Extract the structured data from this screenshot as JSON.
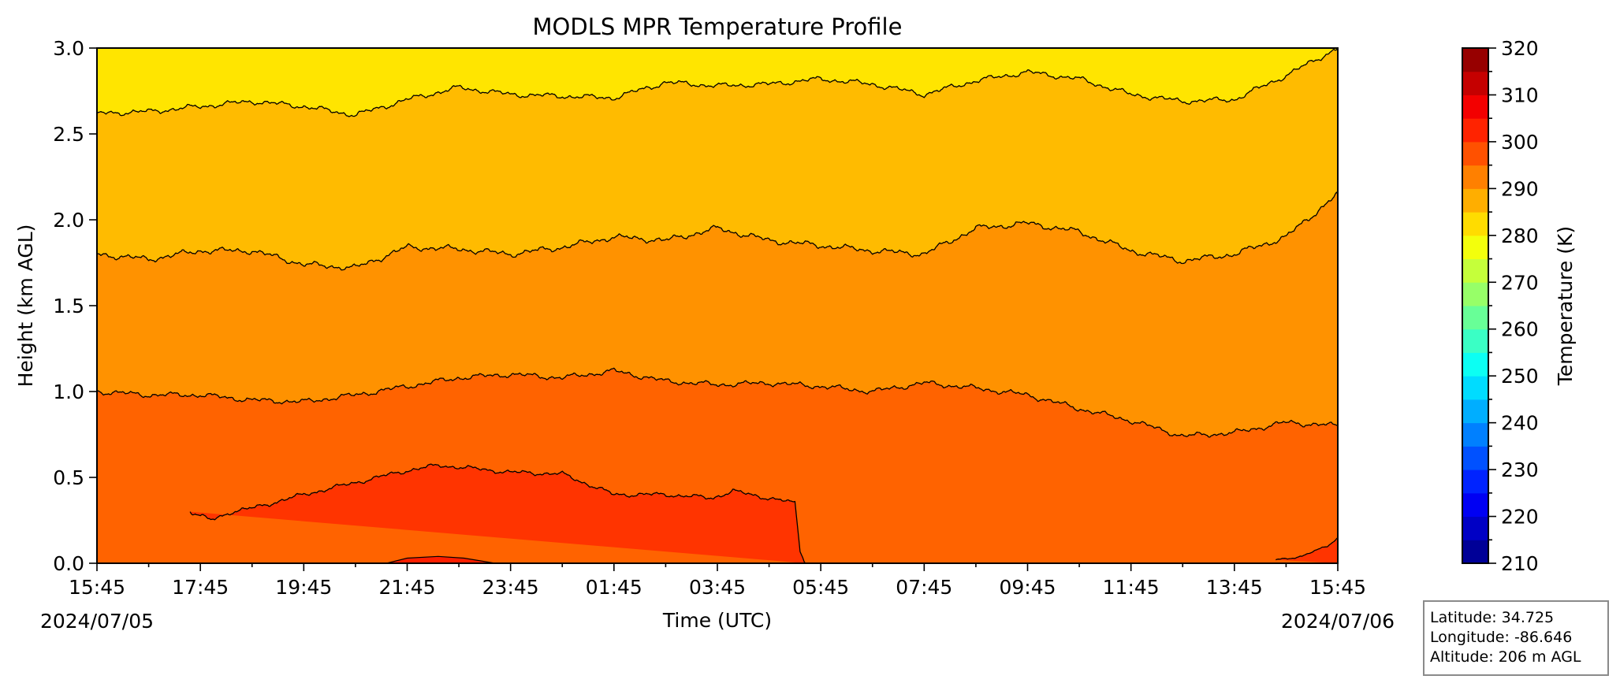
{
  "chart_data": {
    "type": "heatmap",
    "title": "MODLS MPR Temperature Profile",
    "xlabel": "Time (UTC)",
    "ylabel": "Height (km AGL)",
    "x_tick_labels": [
      "15:45",
      "17:45",
      "19:45",
      "21:45",
      "23:45",
      "01:45",
      "03:45",
      "05:45",
      "07:45",
      "09:45",
      "11:45",
      "13:45",
      "15:45"
    ],
    "x_range": [
      "2024-07-05 15:45",
      "2024-07-06 15:45"
    ],
    "start_date_label": "2024/07/05",
    "end_date_label": "2024/07/06",
    "ylim": [
      0.0,
      3.0
    ],
    "y_ticks": [
      "0.0",
      "0.5",
      "1.0",
      "1.5",
      "2.0",
      "2.5",
      "3.0"
    ],
    "colorbar": {
      "label": "Temperature (K)",
      "range": [
        210,
        320
      ],
      "tick_labels": [
        "210",
        "220",
        "230",
        "240",
        "250",
        "260",
        "270",
        "280",
        "290",
        "300",
        "310",
        "320"
      ],
      "level_step": 5,
      "colormap": "jet"
    },
    "contour_levels_K": [
      300,
      295,
      290,
      285
    ],
    "filled_regions": [
      {
        "range_K": [
          300,
          305
        ],
        "color": "#ff3400"
      },
      {
        "range_K": [
          295,
          300
        ],
        "color": "#ff6300"
      },
      {
        "range_K": [
          290,
          295
        ],
        "color": "#ff9200"
      },
      {
        "range_K": [
          285,
          290
        ],
        "color": "#ffbb00"
      },
      {
        "range_K": [
          280,
          285
        ],
        "color": "#ffe500"
      }
    ],
    "contours": [
      {
        "level_K": 285,
        "hours": [
          0,
          1,
          2,
          3,
          4,
          5,
          6,
          7,
          8,
          9,
          10,
          11,
          12,
          13,
          14,
          15,
          16,
          17,
          18,
          19,
          20,
          21,
          22,
          23,
          24
        ],
        "height_km": [
          2.62,
          2.63,
          2.66,
          2.69,
          2.66,
          2.61,
          2.7,
          2.77,
          2.73,
          2.72,
          2.71,
          2.8,
          2.78,
          2.79,
          2.82,
          2.79,
          2.73,
          2.81,
          2.86,
          2.82,
          2.73,
          2.69,
          2.7,
          2.84,
          3.0
        ]
      },
      {
        "level_K": 290,
        "hours": [
          0,
          1,
          2,
          3,
          4,
          5,
          6,
          7,
          8,
          9,
          10,
          11,
          12,
          13,
          14,
          15,
          16,
          17,
          18,
          19,
          20,
          21,
          22,
          23,
          24
        ],
        "height_km": [
          1.8,
          1.77,
          1.82,
          1.82,
          1.74,
          1.72,
          1.84,
          1.83,
          1.8,
          1.84,
          1.9,
          1.88,
          1.95,
          1.88,
          1.85,
          1.82,
          1.8,
          1.95,
          1.98,
          1.93,
          1.82,
          1.76,
          1.8,
          1.9,
          2.15
        ]
      },
      {
        "level_K": 295,
        "hours": [
          0,
          1,
          2,
          3,
          4,
          5,
          6,
          7,
          8,
          9,
          10,
          11,
          12,
          13,
          14,
          15,
          16,
          17,
          18,
          19,
          20,
          21,
          22,
          23,
          24
        ],
        "height_km": [
          1.0,
          0.98,
          0.98,
          0.95,
          0.94,
          0.98,
          1.03,
          1.08,
          1.1,
          1.08,
          1.12,
          1.06,
          1.04,
          1.05,
          1.03,
          1.0,
          1.05,
          1.02,
          0.98,
          0.9,
          0.83,
          0.74,
          0.76,
          0.82,
          0.8
        ]
      },
      {
        "level_K": 300,
        "hours": [
          1.8,
          2.2,
          2.6,
          3,
          4,
          5,
          6,
          6.6,
          7,
          8,
          9,
          10,
          11,
          11.9,
          12.3,
          13.5,
          13.6,
          13.7
        ],
        "height_km": [
          0.3,
          0.25,
          0.3,
          0.32,
          0.4,
          0.47,
          0.54,
          0.57,
          0.56,
          0.53,
          0.52,
          0.4,
          0.4,
          0.38,
          0.42,
          0.35,
          0.08,
          0.0
        ]
      },
      {
        "level_K": 300,
        "hours": [
          22.8,
          23.3,
          23.8,
          24
        ],
        "height_km": [
          0.02,
          0.04,
          0.1,
          0.15
        ]
      }
    ],
    "warm_core": {
      "level_K": 305,
      "hours": [
        5.6,
        6.0,
        6.6,
        7.1,
        7.7
      ],
      "height_km": [
        0.0,
        0.03,
        0.04,
        0.03,
        0.0
      ]
    }
  },
  "info": {
    "latitude": "Latitude: 34.725",
    "longitude": "Longitude: -86.646",
    "altitude": "Altitude: 206 m AGL"
  }
}
